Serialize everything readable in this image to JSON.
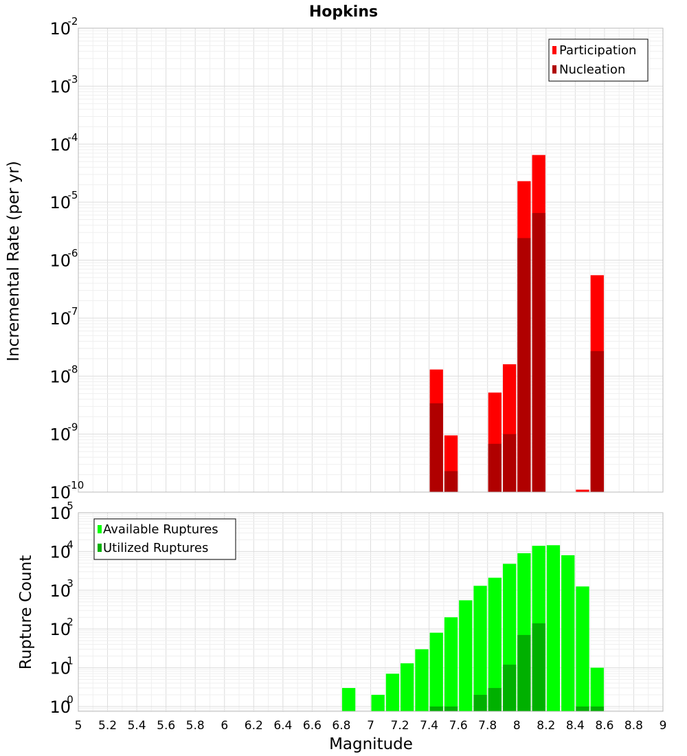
{
  "colors": {
    "participation": "#ff0000",
    "nucleation": "#b00000",
    "available": "#00ff00",
    "utilized": "#00b000"
  },
  "chart_data": [
    {
      "type": "bar",
      "yscale": "log",
      "title": "Hopkins",
      "xlabel": "",
      "ylabel": "Incremental Rate (per yr)",
      "xlim": [
        5,
        9
      ],
      "ylim": [
        1e-10,
        0.01
      ],
      "ytick_exponents": [
        "-10",
        "-9",
        "-8",
        "-7",
        "-6",
        "-5",
        "-4",
        "-3",
        "-2"
      ],
      "bar_width": 0.1,
      "legend": {
        "position": "top-right",
        "entries": [
          "Participation",
          "Nucleation"
        ]
      },
      "series": [
        {
          "name": "Participation",
          "x": [
            7.45,
            7.55,
            7.85,
            7.95,
            8.05,
            8.15,
            8.45,
            8.55
          ],
          "values": [
            1.3e-08,
            9.5e-10,
            5.2e-09,
            1.6e-08,
            2.3e-05,
            6.5e-05,
            1.1e-10,
            5.5e-07
          ]
        },
        {
          "name": "Nucleation",
          "x": [
            7.45,
            7.55,
            7.85,
            7.95,
            8.05,
            8.15,
            8.55
          ],
          "values": [
            3.4e-09,
            2.3e-10,
            6.8e-10,
            1e-09,
            2.4e-06,
            6.5e-06,
            2.7e-08
          ]
        }
      ]
    },
    {
      "type": "bar",
      "yscale": "log",
      "title": "",
      "xlabel": "Magnitude",
      "ylabel": "Rupture Count",
      "xlim": [
        5,
        9
      ],
      "ylim": [
        0.75,
        100000.0
      ],
      "ytick_exponents": [
        "0",
        "1",
        "2",
        "3",
        "4",
        "5"
      ],
      "xticks": [
        "5",
        "5.2",
        "5.4",
        "5.6",
        "5.8",
        "6",
        "6.2",
        "6.4",
        "6.6",
        "6.8",
        "7",
        "7.2",
        "7.4",
        "7.6",
        "7.8",
        "8",
        "8.2",
        "8.4",
        "8.6",
        "8.8",
        "9"
      ],
      "bar_width": 0.1,
      "legend": {
        "position": "top-left",
        "entries": [
          "Available Ruptures",
          "Utilized Ruptures"
        ]
      },
      "series": [
        {
          "name": "Available Ruptures",
          "x": [
            6.85,
            7.05,
            7.15,
            7.25,
            7.35,
            7.45,
            7.55,
            7.65,
            7.75,
            7.85,
            7.95,
            8.05,
            8.15,
            8.25,
            8.35,
            8.45,
            8.55
          ],
          "values": [
            3,
            2,
            7,
            13,
            30,
            80,
            200,
            550,
            1300,
            2100,
            4800,
            9000,
            14000,
            14500,
            8000,
            1250,
            10
          ]
        },
        {
          "name": "Utilized Ruptures",
          "x": [
            7.45,
            7.55,
            7.75,
            7.85,
            7.95,
            8.05,
            8.15,
            8.45,
            8.55
          ],
          "values": [
            1,
            1,
            2,
            3,
            12,
            70,
            140,
            1,
            1
          ]
        }
      ]
    }
  ]
}
